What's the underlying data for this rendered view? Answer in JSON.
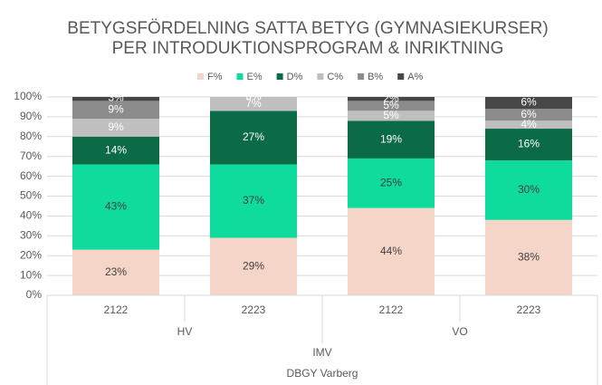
{
  "chart_data": {
    "type": "stacked_bar",
    "title": [
      "BETYGSFÖRDELNING SATTA BETYG (GYMNASIEKURSER)",
      "PER INTRODUKTIONSPROGRAM & INRIKTNING"
    ],
    "categories": [
      "2122",
      "2223",
      "2122",
      "2223"
    ],
    "category_groups": [
      [
        "HV",
        null,
        "VO",
        null
      ],
      [
        "IMV",
        null,
        null,
        null
      ],
      [
        "DBGY Varberg",
        null,
        null,
        null
      ]
    ],
    "series": [
      {
        "name": "F%",
        "color": "#f5d5c8",
        "label_color": "#404040",
        "values": [
          23,
          29,
          44,
          38
        ],
        "value_labels": [
          "23%",
          "29%",
          "44%",
          "38%"
        ]
      },
      {
        "name": "E%",
        "color": "#0fdc9c",
        "label_color": "#404040",
        "values": [
          43,
          37,
          25,
          30
        ],
        "value_labels": [
          "43%",
          "37%",
          "25%",
          "30%"
        ]
      },
      {
        "name": "D%",
        "color": "#0b6b47",
        "label_color": "#ffffff",
        "values": [
          14,
          27,
          19,
          16
        ],
        "value_labels": [
          "14%",
          "27%",
          "19%",
          "16%"
        ]
      },
      {
        "name": "C%",
        "color": "#bfbfbf",
        "label_color": "#ffffff",
        "values": [
          9,
          7,
          5,
          4
        ],
        "value_labels": [
          "9%",
          "7%",
          "5%",
          "4%"
        ]
      },
      {
        "name": "B%",
        "color": "#8c8c8c",
        "label_color": "#ffffff",
        "values": [
          9,
          0,
          5,
          6
        ],
        "value_labels": [
          "9%",
          "0%",
          "5%",
          "6%"
        ]
      },
      {
        "name": "A%",
        "color": "#474747",
        "label_color": "#ffffff",
        "values": [
          3,
          0,
          2,
          6
        ],
        "value_labels": [
          "3%",
          "0%",
          "2%",
          "6%"
        ]
      }
    ],
    "ylim": [
      0,
      100
    ],
    "yticks": [
      {
        "value": 0,
        "label": "0%"
      },
      {
        "value": 10,
        "label": "10%"
      },
      {
        "value": 20,
        "label": "20%"
      },
      {
        "value": 30,
        "label": "30%"
      },
      {
        "value": 40,
        "label": "40%"
      },
      {
        "value": 50,
        "label": "50%"
      },
      {
        "value": 60,
        "label": "60%"
      },
      {
        "value": 70,
        "label": "70%"
      },
      {
        "value": 80,
        "label": "80%"
      },
      {
        "value": 90,
        "label": "90%"
      },
      {
        "value": 100,
        "label": "100%"
      }
    ],
    "grid": true,
    "legend": "top"
  }
}
